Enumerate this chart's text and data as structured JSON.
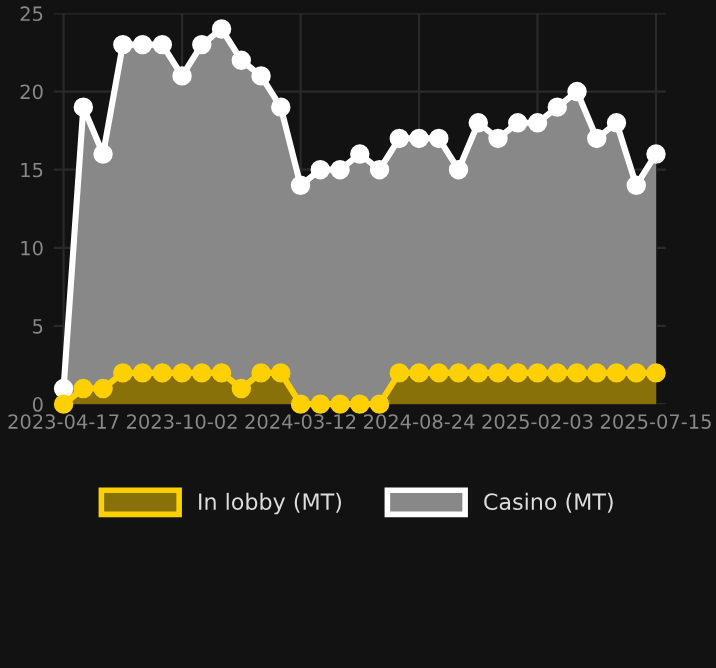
{
  "chart_data": {
    "type": "area",
    "categories": [
      "2023-04-17",
      null,
      null,
      null,
      null,
      null,
      "2023-10-02",
      null,
      null,
      null,
      null,
      null,
      "2024-03-12",
      null,
      null,
      null,
      null,
      null,
      "2024-08-24",
      null,
      null,
      null,
      null,
      null,
      "2025-02-03",
      null,
      null,
      null,
      null,
      null,
      "2025-07-15"
    ],
    "series": [
      {
        "name": "Casino (MT)",
        "color": "#ffffff",
        "values": [
          1,
          19,
          16,
          23,
          23,
          23,
          21,
          23,
          24,
          22,
          21,
          19,
          14,
          15,
          15,
          16,
          15,
          17,
          17,
          17,
          15,
          18,
          17,
          18,
          18,
          19,
          20,
          17,
          18,
          14,
          16
        ]
      },
      {
        "name": "In lobby (MT)",
        "color": "#ffd000",
        "values": [
          0,
          1,
          1,
          2,
          2,
          2,
          2,
          2,
          2,
          1,
          2,
          2,
          0,
          0,
          0,
          0,
          0,
          2,
          2,
          2,
          2,
          2,
          2,
          2,
          2,
          2,
          2,
          2,
          2,
          2,
          2
        ]
      }
    ],
    "ylim": [
      0,
      25
    ],
    "yticks": [
      0,
      5,
      10,
      15,
      20,
      25
    ],
    "grid": true,
    "legend": "bottom",
    "marker": "circle"
  }
}
